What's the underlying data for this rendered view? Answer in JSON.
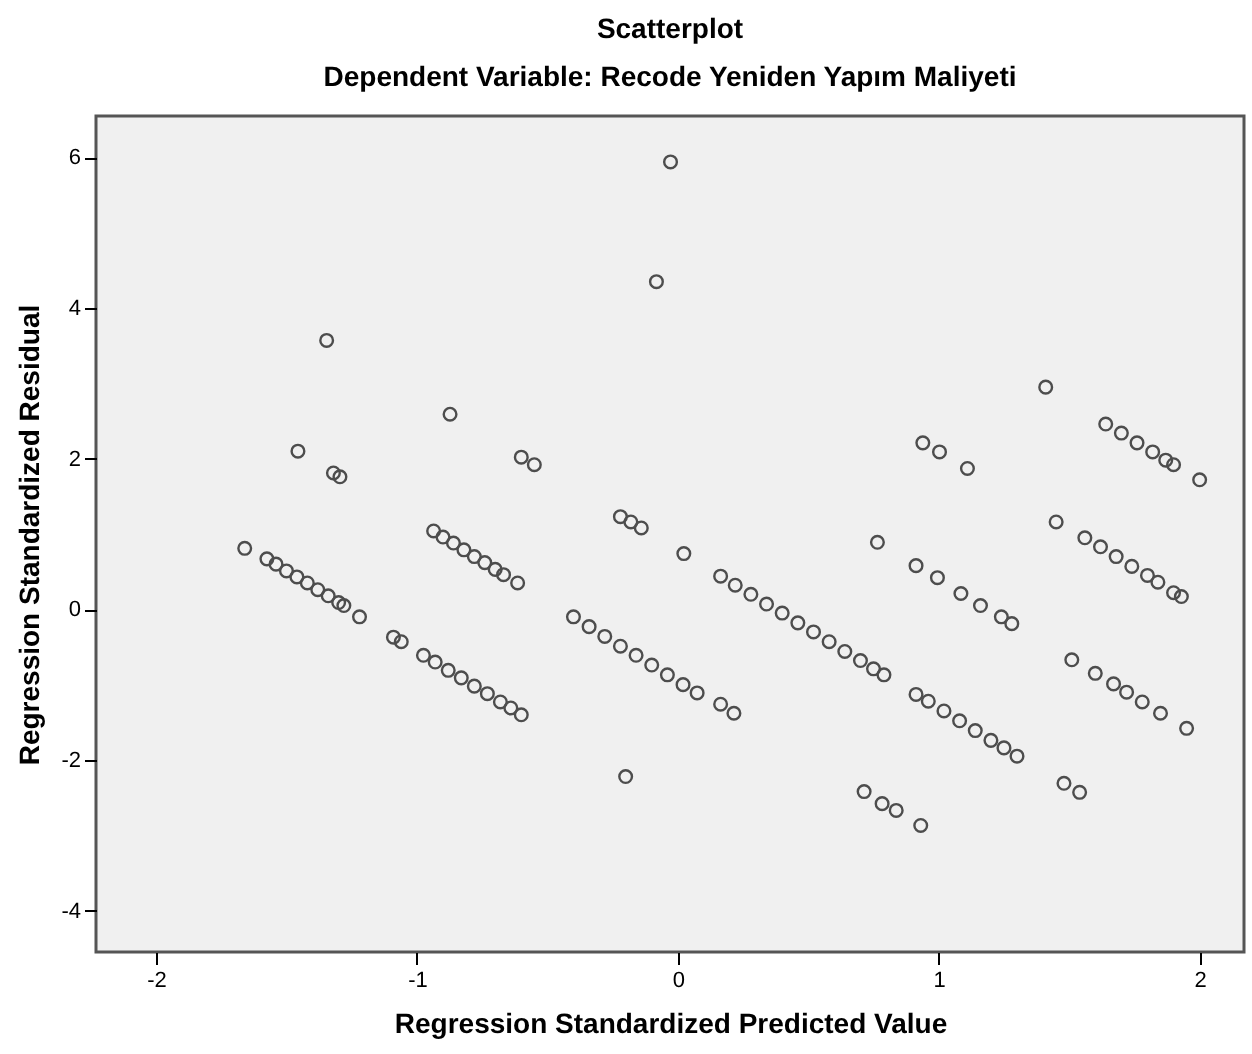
{
  "chart_data": {
    "type": "scatter",
    "title": "Scatterplot",
    "subtitle": "Dependent Variable: Recode Yeniden Yapım Maliyeti",
    "xlabel": "Regression Standardized Predicted Value",
    "ylabel": "Regression Standardized Residual",
    "x": [
      -1.66,
      -1.575,
      -1.54,
      -1.5,
      -1.46,
      -1.42,
      -1.38,
      -1.34,
      -1.3,
      -1.28,
      -1.22,
      -1.456,
      -1.346,
      -1.32,
      -1.295,
      -1.09,
      -1.06,
      -0.936,
      -0.9,
      -0.86,
      -0.82,
      -0.78,
      -0.74,
      -0.7,
      -0.668,
      -0.614,
      -0.975,
      -0.93,
      -0.88,
      -0.83,
      -0.78,
      -0.73,
      -0.68,
      -0.64,
      -0.6,
      -0.873,
      -0.6,
      -0.55,
      -0.22,
      -0.18,
      -0.14,
      -0.2,
      -0.4,
      -0.34,
      -0.28,
      -0.22,
      -0.16,
      -0.1,
      -0.04,
      0.02,
      0.074,
      -0.028,
      -0.082,
      0.023,
      0.164,
      0.215,
      0.164,
      0.22,
      0.28,
      0.34,
      0.4,
      0.46,
      0.52,
      0.58,
      0.64,
      0.7,
      0.75,
      0.79,
      0.765,
      0.714,
      0.783,
      0.837,
      0.931,
      0.939,
      1.003,
      1.11,
      0.913,
      0.995,
      1.085,
      1.16,
      1.24,
      1.28,
      0.913,
      0.96,
      1.02,
      1.08,
      1.14,
      1.2,
      1.25,
      1.3,
      1.41,
      1.48,
      1.54,
      1.45,
      1.56,
      1.62,
      1.68,
      1.74,
      1.8,
      1.84,
      1.9,
      1.93,
      1.64,
      1.7,
      1.76,
      1.82,
      1.87,
      1.9,
      2.0,
      1.51,
      1.6,
      1.67,
      1.72,
      1.78,
      1.85,
      1.95
    ],
    "values": [
      0.81,
      0.67,
      0.6,
      0.51,
      0.43,
      0.35,
      0.26,
      0.18,
      0.09,
      0.05,
      -0.1,
      2.1,
      3.57,
      1.81,
      1.76,
      -0.37,
      -0.43,
      1.04,
      0.96,
      0.88,
      0.79,
      0.7,
      0.62,
      0.53,
      0.46,
      0.35,
      -0.61,
      -0.7,
      -0.81,
      -0.91,
      -1.02,
      -1.12,
      -1.23,
      -1.31,
      -1.4,
      2.59,
      2.02,
      1.92,
      1.23,
      1.16,
      1.08,
      -2.22,
      -0.1,
      -0.23,
      -0.36,
      -0.49,
      -0.61,
      -0.74,
      -0.87,
      -1.0,
      -1.11,
      5.94,
      4.35,
      0.74,
      -1.26,
      -1.38,
      0.44,
      0.32,
      0.2,
      0.07,
      -0.05,
      -0.18,
      -0.3,
      -0.43,
      -0.56,
      -0.68,
      -0.79,
      -0.87,
      0.89,
      -2.42,
      -2.58,
      -2.67,
      -2.87,
      2.21,
      2.09,
      1.87,
      0.58,
      0.42,
      0.21,
      0.05,
      -0.1,
      -0.19,
      -1.13,
      -1.22,
      -1.35,
      -1.48,
      -1.61,
      -1.74,
      -1.84,
      -1.95,
      2.95,
      -2.31,
      -2.43,
      1.16,
      0.95,
      0.83,
      0.7,
      0.57,
      0.45,
      0.36,
      0.22,
      0.17,
      2.46,
      2.34,
      2.21,
      2.09,
      1.98,
      1.92,
      1.72,
      -0.67,
      -0.85,
      -0.99,
      -1.1,
      -1.23,
      -1.38,
      -1.58
    ],
    "color": "#4d4d4d",
    "marker": "circle",
    "xlim": [
      -2.23,
      2.17
    ],
    "ylim": [
      -4.55,
      6.55
    ],
    "xticks": [
      -2,
      -1,
      0,
      1,
      2
    ],
    "yticks": [
      -4,
      -2,
      0,
      2,
      4,
      6
    ]
  }
}
